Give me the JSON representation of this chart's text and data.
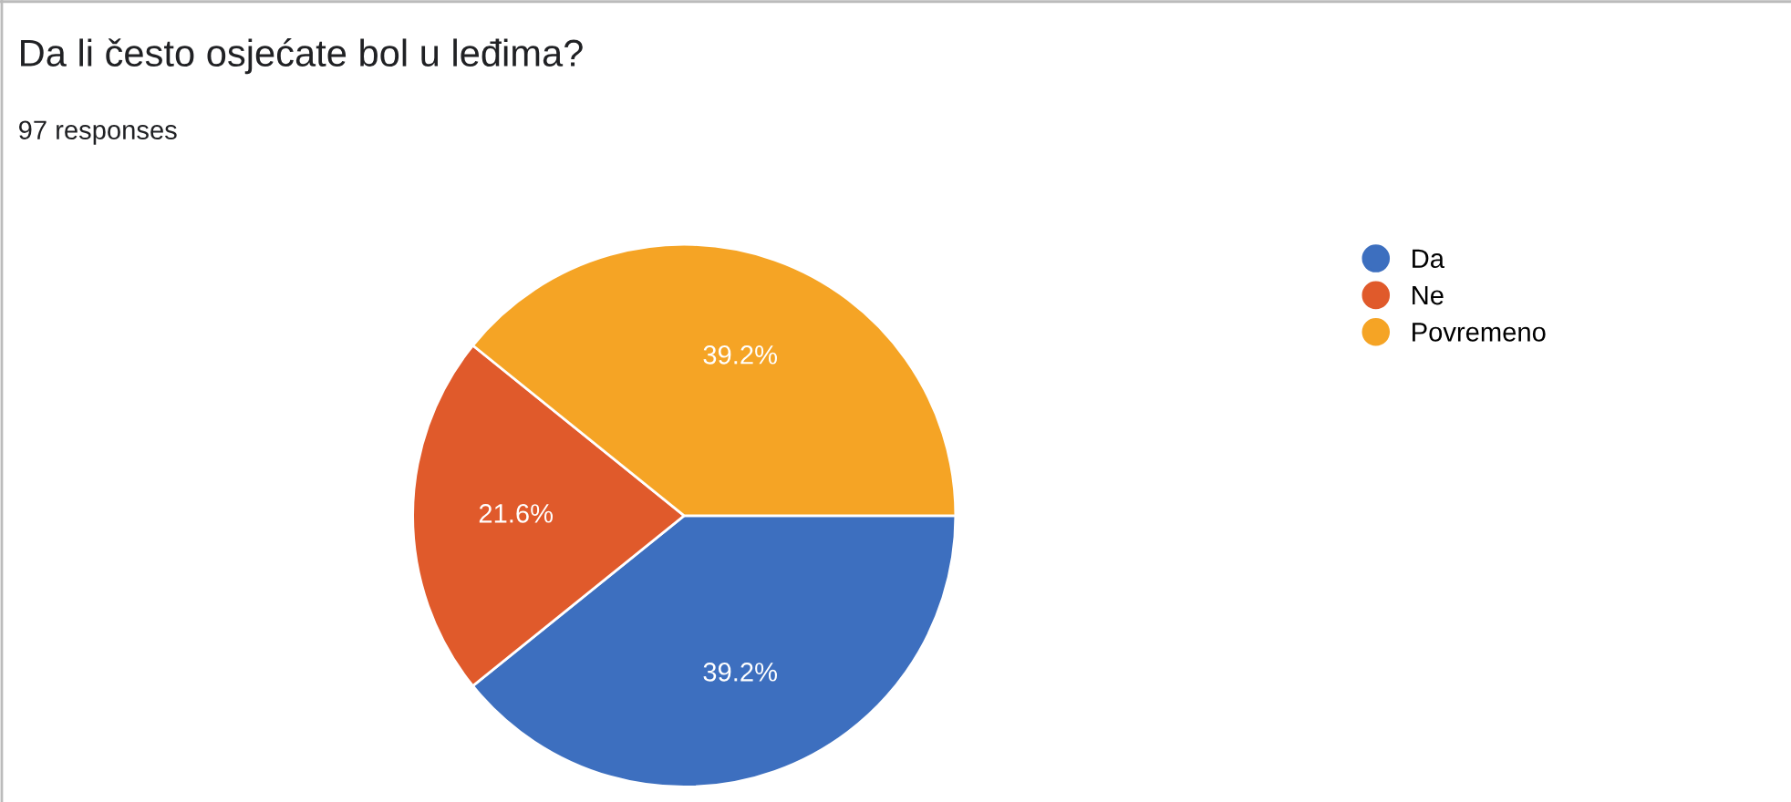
{
  "chart_data": {
    "type": "pie",
    "title": "Da li često osjećate bol u leđima?",
    "subtitle": "97 responses",
    "categories": [
      "Da",
      "Ne",
      "Povremeno"
    ],
    "values": [
      39.2,
      21.6,
      39.2
    ],
    "value_labels": [
      "39.2%",
      "21.6%",
      "39.2%"
    ],
    "colors": [
      "#3d6fbf",
      "#e05a2b",
      "#f5a425"
    ],
    "legend": "right"
  }
}
